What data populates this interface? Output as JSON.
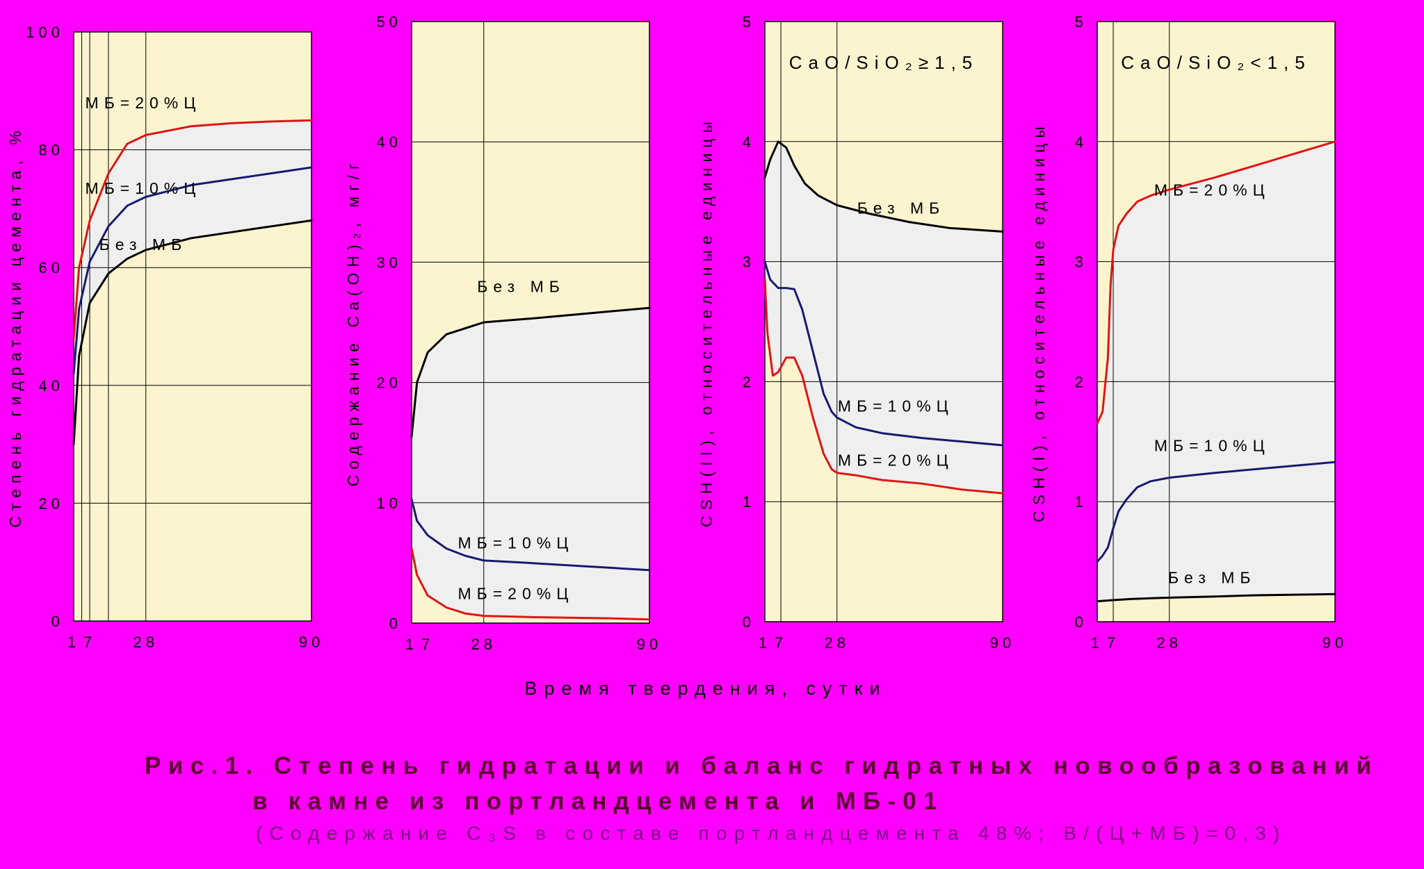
{
  "x_axis_label": "Время твердения, сутки",
  "caption": {
    "title": "Рис.1. Степень гидратации и баланс гидратных новообразований",
    "title_line2": "в камне из портландцемента и МБ-01",
    "note": "(Содержание C₃S в составе портландцемента 48%; В/(Ц+МБ)=0,3)"
  },
  "colors": {
    "background": "#ff00ff",
    "plot_area": "#fcf3cf",
    "band_fill": "#efefef",
    "black_series": "#000000",
    "blue_series": "#191970",
    "red_series": "#dd1515"
  },
  "chart_data": [
    {
      "type": "line",
      "ylabel": "Степень гидратации цемента, %",
      "ylim": [
        0,
        100
      ],
      "yticks": [
        0,
        20,
        40,
        60,
        80,
        100
      ],
      "xlim": [
        1,
        90
      ],
      "xticks": [
        1,
        7,
        28,
        90
      ],
      "vgrid": [
        1,
        4,
        7,
        14,
        28,
        90
      ],
      "inner_label": "",
      "series": [
        {
          "name": "МБ=20%Ц",
          "color": "#dd1515",
          "label_at": [
            27,
            87
          ],
          "x": [
            1,
            3,
            7,
            14,
            21,
            28,
            45,
            60,
            75,
            90
          ],
          "y": [
            48,
            60,
            68,
            76,
            81,
            82.5,
            84,
            84.5,
            84.8,
            85
          ]
        },
        {
          "name": "МБ=10%Ц",
          "color": "#191970",
          "label_at": [
            27,
            72.5
          ],
          "x": [
            1,
            3,
            7,
            14,
            21,
            28,
            45,
            60,
            75,
            90
          ],
          "y": [
            42,
            53,
            61,
            67,
            70.5,
            72,
            74,
            75,
            76,
            77
          ]
        },
        {
          "name": "Без МБ",
          "color": "#000000",
          "label_at": [
            27,
            63
          ],
          "x": [
            1,
            3,
            7,
            14,
            21,
            28,
            45,
            60,
            75,
            90
          ],
          "y": [
            30,
            45,
            54,
            59,
            61.5,
            63,
            65,
            66,
            67,
            68
          ]
        }
      ]
    },
    {
      "type": "line",
      "ylabel": "Содержание Ca(OH)₂, мг/г",
      "ylim": [
        0,
        50
      ],
      "yticks": [
        0,
        10,
        20,
        30,
        40,
        50
      ],
      "xlim": [
        1,
        90
      ],
      "xticks": [
        1,
        7,
        28,
        90
      ],
      "vgrid": [
        1,
        28
      ],
      "inner_label": "",
      "series": [
        {
          "name": "Без МБ",
          "color": "#000000",
          "label_at": [
            42,
            27.5
          ],
          "x": [
            1,
            3,
            7,
            14,
            21,
            28,
            45,
            60,
            75,
            90
          ],
          "y": [
            15.5,
            20,
            22.5,
            24,
            24.5,
            25,
            25.3,
            25.6,
            25.9,
            26.2
          ]
        },
        {
          "name": "МБ=10%Ц",
          "color": "#191970",
          "label_at": [
            40,
            6.2
          ],
          "x": [
            1,
            3,
            7,
            14,
            21,
            28,
            45,
            60,
            75,
            90
          ],
          "y": [
            10.3,
            8.5,
            7.3,
            6.2,
            5.6,
            5.2,
            5,
            4.8,
            4.6,
            4.4
          ]
        },
        {
          "name": "МБ=20%Ц",
          "color": "#dd1515",
          "label_at": [
            40,
            2
          ]
        },
        {
          "name": "",
          "color": "#dd1515",
          "x": [
            1,
            3,
            7,
            14,
            21,
            28,
            45,
            60,
            75,
            90
          ],
          "y": [
            6.2,
            4,
            2.3,
            1.3,
            0.8,
            0.6,
            0.5,
            0.45,
            0.4,
            0.3
          ]
        }
      ]
    },
    {
      "type": "line",
      "ylabel": "CSH(II), относительные единицы",
      "ylim": [
        0,
        5
      ],
      "yticks": [
        0,
        1,
        2,
        3,
        4,
        5
      ],
      "xlim": [
        1,
        90
      ],
      "xticks": [
        1,
        7,
        28,
        90
      ],
      "vgrid": [
        1,
        7,
        28
      ],
      "inner_label": "CaO/SiO₂≥1,5",
      "series": [
        {
          "name": "Без МБ",
          "color": "#000000",
          "label_at": [
            52,
            3.4
          ],
          "x": [
            1,
            3,
            6,
            9,
            12,
            16,
            21,
            28,
            40,
            55,
            70,
            90
          ],
          "y": [
            3.7,
            3.85,
            4,
            3.95,
            3.8,
            3.65,
            3.55,
            3.47,
            3.4,
            3.33,
            3.28,
            3.25
          ]
        },
        {
          "name": "МБ=10%Ц",
          "color": "#191970",
          "label_at": [
            50,
            1.75
          ],
          "x": [
            1,
            3,
            6,
            9,
            12,
            15,
            19,
            23,
            26,
            28,
            35,
            45,
            60,
            75,
            90
          ],
          "y": [
            3,
            2.85,
            2.78,
            2.78,
            2.77,
            2.6,
            2.25,
            1.9,
            1.75,
            1.7,
            1.62,
            1.57,
            1.53,
            1.5,
            1.47
          ]
        },
        {
          "name": "МБ=20%Ц",
          "color": "#dd1515",
          "label_at": [
            50,
            1.3
          ],
          "x": [
            1,
            2,
            4,
            6,
            9,
            12,
            15,
            19,
            23,
            26,
            28,
            35,
            45,
            60,
            75,
            90
          ],
          "y": [
            2.85,
            2.4,
            2.05,
            2.08,
            2.2,
            2.2,
            2.05,
            1.7,
            1.4,
            1.27,
            1.24,
            1.22,
            1.18,
            1.15,
            1.1,
            1.07
          ]
        }
      ]
    },
    {
      "type": "line",
      "ylabel": "CSH(I), относительные единицы",
      "ylim": [
        0,
        5
      ],
      "yticks": [
        0,
        1,
        2,
        3,
        4,
        5
      ],
      "xlim": [
        1,
        90
      ],
      "xticks": [
        1,
        7,
        28,
        90
      ],
      "vgrid": [
        1,
        7,
        28
      ],
      "inner_label": "CaO/SiO₂<1,5",
      "series": [
        {
          "name": "МБ=20%Ц",
          "color": "#dd1515",
          "label_at": [
            44,
            3.55
          ],
          "x": [
            1,
            3,
            5,
            6,
            7,
            9,
            12,
            16,
            21,
            28,
            45,
            60,
            75,
            90
          ],
          "y": [
            1.65,
            1.75,
            2.2,
            2.8,
            3.1,
            3.3,
            3.4,
            3.5,
            3.55,
            3.6,
            3.7,
            3.8,
            3.9,
            4
          ]
        },
        {
          "name": "МБ=10%Ц",
          "color": "#191970",
          "label_at": [
            44,
            1.42
          ],
          "x": [
            1,
            3,
            5,
            7,
            9,
            12,
            16,
            21,
            28,
            45,
            60,
            75,
            90
          ],
          "y": [
            0.5,
            0.55,
            0.62,
            0.78,
            0.92,
            1.02,
            1.12,
            1.17,
            1.2,
            1.24,
            1.27,
            1.3,
            1.33
          ]
        },
        {
          "name": "Без МБ",
          "color": "#000000",
          "label_at": [
            44,
            0.32
          ],
          "x": [
            1,
            7,
            14,
            28,
            45,
            60,
            75,
            90
          ],
          "y": [
            0.17,
            0.18,
            0.19,
            0.2,
            0.21,
            0.22,
            0.225,
            0.23
          ]
        }
      ]
    }
  ]
}
